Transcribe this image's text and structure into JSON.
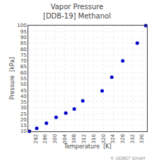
{
  "chart_data": {
    "type": "scatter",
    "title": "Vapor Pressure",
    "subtitle": "[DDB-19] Methanol",
    "x_label": "Temperature  [K]",
    "y_label": "Pressure  [kPa]",
    "x": [
      289.5,
      292.5,
      296.5,
      300.5,
      304.5,
      308.0,
      311.5,
      319.5,
      323.5,
      328.0,
      334.0,
      337.5
    ],
    "values": [
      10.0,
      12.5,
      17.0,
      22.0,
      25.5,
      29.0,
      36.0,
      44.5,
      56.0,
      70.0,
      85.0,
      100.0
    ],
    "color": "#0000cc",
    "xlim": [
      289,
      338
    ],
    "ylim": [
      10,
      100
    ],
    "xticks": [
      292,
      296,
      300,
      304,
      308,
      312,
      316,
      320,
      324,
      328,
      332,
      336
    ],
    "yticks": [
      10,
      15,
      20,
      25,
      30,
      35,
      40,
      45,
      50,
      55,
      60,
      65,
      70,
      75,
      80,
      85,
      90,
      95,
      100
    ],
    "grid": true,
    "annotations": [
      "© DDBST GmbH"
    ]
  }
}
